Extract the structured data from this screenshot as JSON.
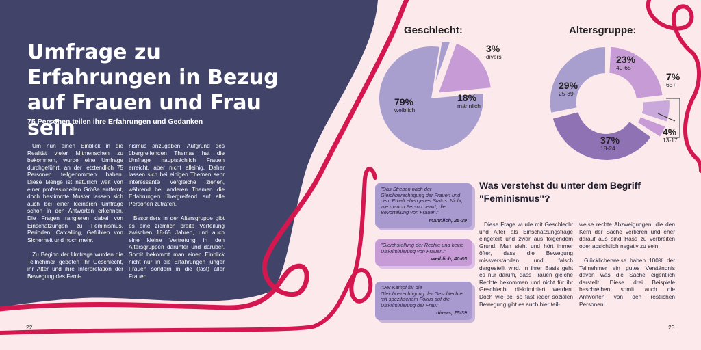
{
  "left_page": {
    "title": "Umfrage zu Erfahrungen in Bezug auf Frauen und Frau sein",
    "subtitle": "75 Personen teilen ihre Erfahrungen und Gedanken",
    "col1": [
      "Um nun einen Einblick in die Realität vieler Mitmenschen zu bekommen, wurde eine Umfrage durchgeführt, an der letztendlich 75 Personen teilgenommen haben. Diese Menge ist natürlich weit von einer professionellen Größe entfernt, doch bestimmte Muster lassen sich auch bei einer kleineren Umfrage schon in den Antworten erkennen. Die Fragen rangieren dabei von Einschätzungen zu Feminismus, Perioden, Catcalling, Gefühlen von Sicherheit und noch mehr.",
      "Zu Beginn der Umfrage wurden die Teilnehmer gebeten ihr Geschlecht, ihr Alter und ihre Interpretation der Bewegung des Femi-"
    ],
    "col2": [
      "nismus anzugeben. Aufgrund des übergreifenden Themas hat die Umfrage hauptsächlich Frauen erreicht, aber nicht alleinig. Daher lassen sich bei einigen Themen sehr interessante Vergleiche ziehen, während bei anderen Themen die Erfahrungen übergreifend auf alle Personen zutrafen.",
      "Besonders in der Altersgruppe gibt es eine ziemlich breite Verteilung zwischen 18-65 Jahren, und auch eine kleine Vertretung in den Altersgruppen darunter und darüber. Somit bekommt man einen Einblick nicht nur in die Erfahrungen junger Frauen sondern in die (fast) aller Frauen."
    ],
    "page_number": "22"
  },
  "right_page": {
    "gender_chart": {
      "title": "Geschlecht:",
      "labels": [
        {
          "pct": "79%",
          "name": "weiblich"
        },
        {
          "pct": "18%",
          "name": "männlich"
        },
        {
          "pct": "3%",
          "name": "divers"
        }
      ]
    },
    "age_chart": {
      "title": "Altersgruppe:",
      "labels": [
        {
          "pct": "23%",
          "name": "40-65"
        },
        {
          "pct": "7%",
          "name": "65+"
        },
        {
          "pct": "4%",
          "name": "13-17"
        },
        {
          "pct": "37%",
          "name": "18-24"
        },
        {
          "pct": "29%",
          "name": "25-39"
        }
      ]
    },
    "quotes": [
      {
        "text": "\"Das Streben nach der Gleichberechtigung der Frauen und dem Erhalt eben jenes Status. Nicht, wie manch Person denkt, die Bevorteilung von Frauen.\"",
        "by": "männlich, 25-39"
      },
      {
        "text": "\"Gleichstellung der Rechte und keine Diskriminierung von Frauen.\"",
        "by": "weiblich, 40-65"
      },
      {
        "text": "\"Der Kampf für die Gleichberechtigung der Geschlechter mit spezifischem Fokus auf die Diskriminierung der Frau.\"",
        "by": "divers, 25-39"
      }
    ],
    "heading": "Was verstehst du unter dem Begriff \"Feminismus\"?",
    "col1": [
      "Diese Frage wurde mit Geschlecht und Alter als Einschätzungsfrage eingeteilt und zwar aus folgendem Grund. Man sieht und hört immer öfter, dass die Bewegung missverstanden und falsch dargestellt wird. In ihrer Basis geht es nur darum, dass Frauen gleiche Rechte bekommen und nicht für ihr Geschlecht diskriminiert werden. Doch wie bei so fast jeder sozialen Bewegung gibt es auch hier teil-"
    ],
    "col2": [
      "weise rechte Abzweigungen, die den Kern der Sache verlieren und eher darauf aus sind Hass zu verbreiten oder absichtlich negativ zu sein.",
      "Glücklicherweise haben 100% der Teilnehmer ein gutes Verständnis davon was die Sache eigentlich darstellt. Diese drei Beispiele beschreiben somit auch die Antworten von den restlichen Personen."
    ],
    "page_number": "23"
  },
  "chart_data": [
    {
      "type": "pie",
      "title": "Geschlecht:",
      "categories": [
        "weiblich",
        "männlich",
        "divers"
      ],
      "values": [
        79,
        18,
        3
      ]
    },
    {
      "type": "pie",
      "title": "Altersgruppe:",
      "categories": [
        "40-65",
        "65+",
        "13-17",
        "18-24",
        "25-39"
      ],
      "values": [
        23,
        7,
        4,
        37,
        29
      ]
    }
  ],
  "colors": {
    "navy": "#414468",
    "pink_bg": "#fbe9ec",
    "ribbon": "#d4174f",
    "lavender": "#a89fce",
    "violet": "#8f72b3",
    "mauve": "#c79bd5"
  }
}
